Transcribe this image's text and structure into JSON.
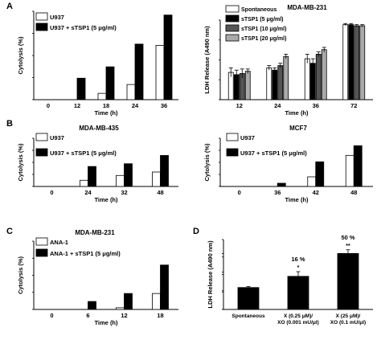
{
  "panels": {
    "A": "A",
    "B": "B",
    "C": "C",
    "D": "D"
  },
  "colors": {
    "open": "#ffffff",
    "filled": "#000000",
    "gray_dark": "#555555",
    "gray_light": "#aaaaaa"
  },
  "chart_data": [
    {
      "id": "A-left",
      "type": "bar",
      "title": "",
      "ylabel": "Cytolysis (%)",
      "xlabel": "Time (h)",
      "categories": [
        "0",
        "12",
        "18",
        "24",
        "36"
      ],
      "ylim": [
        0,
        70
      ],
      "series": [
        {
          "name": "U937",
          "values": [
            0,
            0,
            5,
            12,
            43
          ],
          "fill": "open"
        },
        {
          "name": "U937 + sTSP1 (5 μg/ml)",
          "values": [
            0,
            17,
            26,
            44,
            67
          ],
          "fill": "filled"
        }
      ],
      "legend": "top-left",
      "grid": false
    },
    {
      "id": "A-right",
      "type": "bar",
      "title": "MDA-MB-231",
      "ylabel": "LDH Release (A490 nm)",
      "xlabel": "Time (h)",
      "categories": [
        "12",
        "24",
        "36",
        "72"
      ],
      "ylim": [
        0,
        0.35
      ],
      "series": [
        {
          "name": "Spontaneous",
          "values": [
            0.12,
            0.14,
            0.18,
            0.33
          ],
          "errors": [
            0.02,
            0.01,
            0.02,
            0.005
          ],
          "fill": "open"
        },
        {
          "name": "sTSP1 (5 μg/ml)",
          "values": [
            0.11,
            0.13,
            0.16,
            0.33
          ],
          "errors": [
            0.02,
            0.01,
            0.02,
            0.005
          ],
          "fill": "filled"
        },
        {
          "name": "sTSP1 (10 μg/ml)",
          "values": [
            0.115,
            0.15,
            0.2,
            0.325
          ],
          "errors": [
            0.02,
            0.01,
            0.01,
            0.005
          ],
          "fill": "gray_dark"
        },
        {
          "name": "sTSP1 (20 μg/ml)",
          "values": [
            0.125,
            0.19,
            0.22,
            0.325
          ],
          "errors": [
            0.01,
            0.01,
            0.01,
            0.005
          ],
          "fill": "gray_light"
        }
      ],
      "legend": "top-left",
      "grid": false
    },
    {
      "id": "B-left",
      "type": "bar",
      "title": "MDA-MB-435",
      "ylabel": "Cytolysis (%)",
      "xlabel": "Time (h)",
      "categories": [
        "0",
        "24",
        "32",
        "48"
      ],
      "ylim": [
        0,
        70
      ],
      "series": [
        {
          "name": "U937",
          "values": [
            0,
            9,
            16,
            21
          ],
          "fill": "open"
        },
        {
          "name": "U937 + sTSP1 (5 μg/ml)",
          "values": [
            0,
            29,
            33,
            45
          ],
          "fill": "filled"
        }
      ],
      "legend": "top-left",
      "grid": false
    },
    {
      "id": "B-right",
      "type": "bar",
      "title": "MCF7",
      "ylabel": "Cytolysis (%)",
      "xlabel": "Time (h)",
      "categories": [
        "0",
        "36",
        "42",
        "48"
      ],
      "ylim": [
        0,
        45
      ],
      "series": [
        {
          "name": "U937",
          "values": [
            0,
            0,
            9,
            29
          ],
          "fill": "open"
        },
        {
          "name": "U937 + sTSP1 (5 μg/ml)",
          "values": [
            0,
            3,
            23,
            38
          ],
          "fill": "filled"
        }
      ],
      "legend": "top-left",
      "grid": false
    },
    {
      "id": "C",
      "type": "bar",
      "title": "MDA-MB-231",
      "ylabel": "Cytolysis (%)",
      "xlabel": "Time (h)",
      "categories": [
        "0",
        "6",
        "12",
        "18"
      ],
      "ylim": [
        0,
        60
      ],
      "series": [
        {
          "name": "ANA-1",
          "values": [
            0,
            0,
            1.5,
            14
          ],
          "fill": "open"
        },
        {
          "name": "ANA-1 + sTSP1 (5 μg/ml)",
          "values": [
            0,
            7,
            14,
            39
          ],
          "fill": "filled"
        }
      ],
      "legend": "top-left",
      "grid": false
    },
    {
      "id": "D",
      "type": "bar",
      "title": "",
      "ylabel": "LDH Release (A490 nm)",
      "xlabel": "",
      "categories": [
        "Spontaneous",
        "X (0.25 μM)/\nXO (0.001 mU/μl)",
        "X (25 μM)/\nXO (0.1 mU/μl)"
      ],
      "ylim": [
        0,
        0.75
      ],
      "series": [
        {
          "values": [
            0.235,
            0.355,
            0.6
          ],
          "errors": [
            0.01,
            0.05,
            0.04
          ],
          "fill": "filled"
        }
      ],
      "annotations": [
        "",
        "16 %",
        "50 %"
      ],
      "stars": [
        "",
        "*",
        "**"
      ],
      "legend": "none",
      "grid": false
    }
  ]
}
